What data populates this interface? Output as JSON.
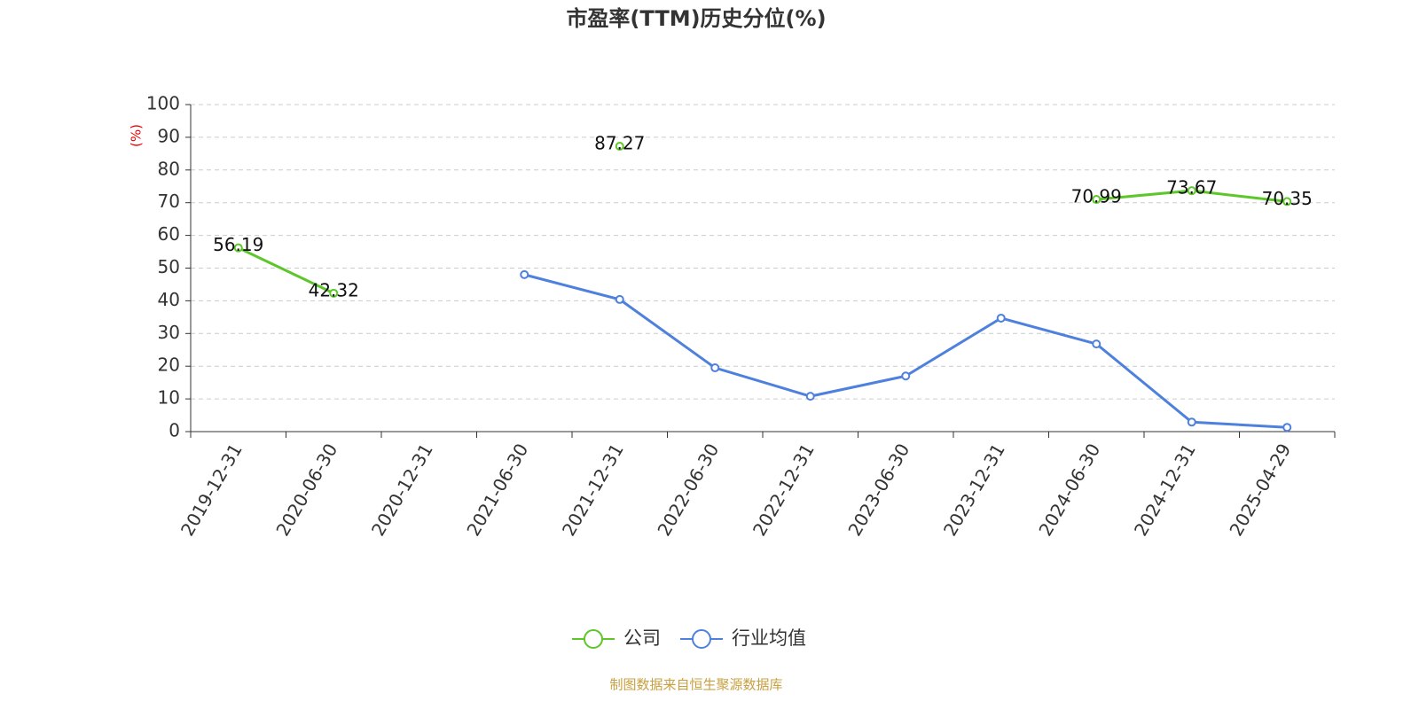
{
  "chart_data": {
    "type": "line",
    "title": "市盈率(TTM)历史分位(%)",
    "y_label": "(%)",
    "categories": [
      "2019-12-31",
      "2020-06-30",
      "2020-12-31",
      "2021-06-30",
      "2021-12-31",
      "2022-06-30",
      "2022-12-31",
      "2023-06-30",
      "2023-12-31",
      "2024-06-30",
      "2024-12-31",
      "2025-04-29"
    ],
    "series": [
      {
        "name": "公司",
        "color": "#5dc72a",
        "values": [
          56.19,
          42.32,
          null,
          null,
          87.27,
          null,
          null,
          null,
          null,
          70.99,
          73.67,
          70.35
        ],
        "show_labels": true
      },
      {
        "name": "行业均值",
        "color": "#4e80dd",
        "values": [
          null,
          null,
          null,
          48.0,
          40.4,
          19.5,
          10.8,
          17.0,
          34.7,
          26.8,
          2.9,
          1.3
        ],
        "show_labels": false
      }
    ],
    "ylim": [
      0,
      100
    ],
    "yticks": [
      0,
      10,
      20,
      30,
      40,
      50,
      60,
      70,
      80,
      90,
      100
    ],
    "grid": true,
    "legend": "bottom",
    "source": "制图数据来自恒生聚源数据库"
  }
}
